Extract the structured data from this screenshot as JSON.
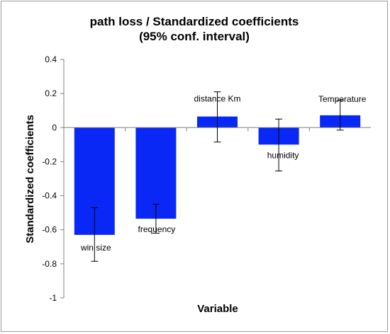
{
  "chart_data": {
    "type": "bar",
    "title": "path loss / Standardized coefficients",
    "subtitle": "(95% conf. interval)",
    "xlabel": "Variable",
    "ylabel": "Standardized coefficients",
    "ylim": [
      -1,
      0.4
    ],
    "yticks": [
      0.4,
      0.2,
      0,
      -0.2,
      -0.4,
      -0.6,
      -0.8,
      -1
    ],
    "ytick_labels": [
      "0.4",
      "0.2",
      "0",
      "-0.2",
      "-0.4",
      "-0.6",
      "-0.8",
      "-1"
    ],
    "categories": [
      "win size",
      "frequency",
      "distance Km",
      "humidity",
      "Temperature"
    ],
    "values": [
      -0.63,
      -0.535,
      0.065,
      -0.1,
      0.072
    ],
    "error_low": [
      -0.785,
      -0.62,
      -0.085,
      -0.255,
      -0.015
    ],
    "error_high": [
      -0.47,
      -0.45,
      0.21,
      0.05,
      0.16
    ],
    "bar_color": "#0a28f5",
    "grid": false,
    "legend": "none"
  }
}
